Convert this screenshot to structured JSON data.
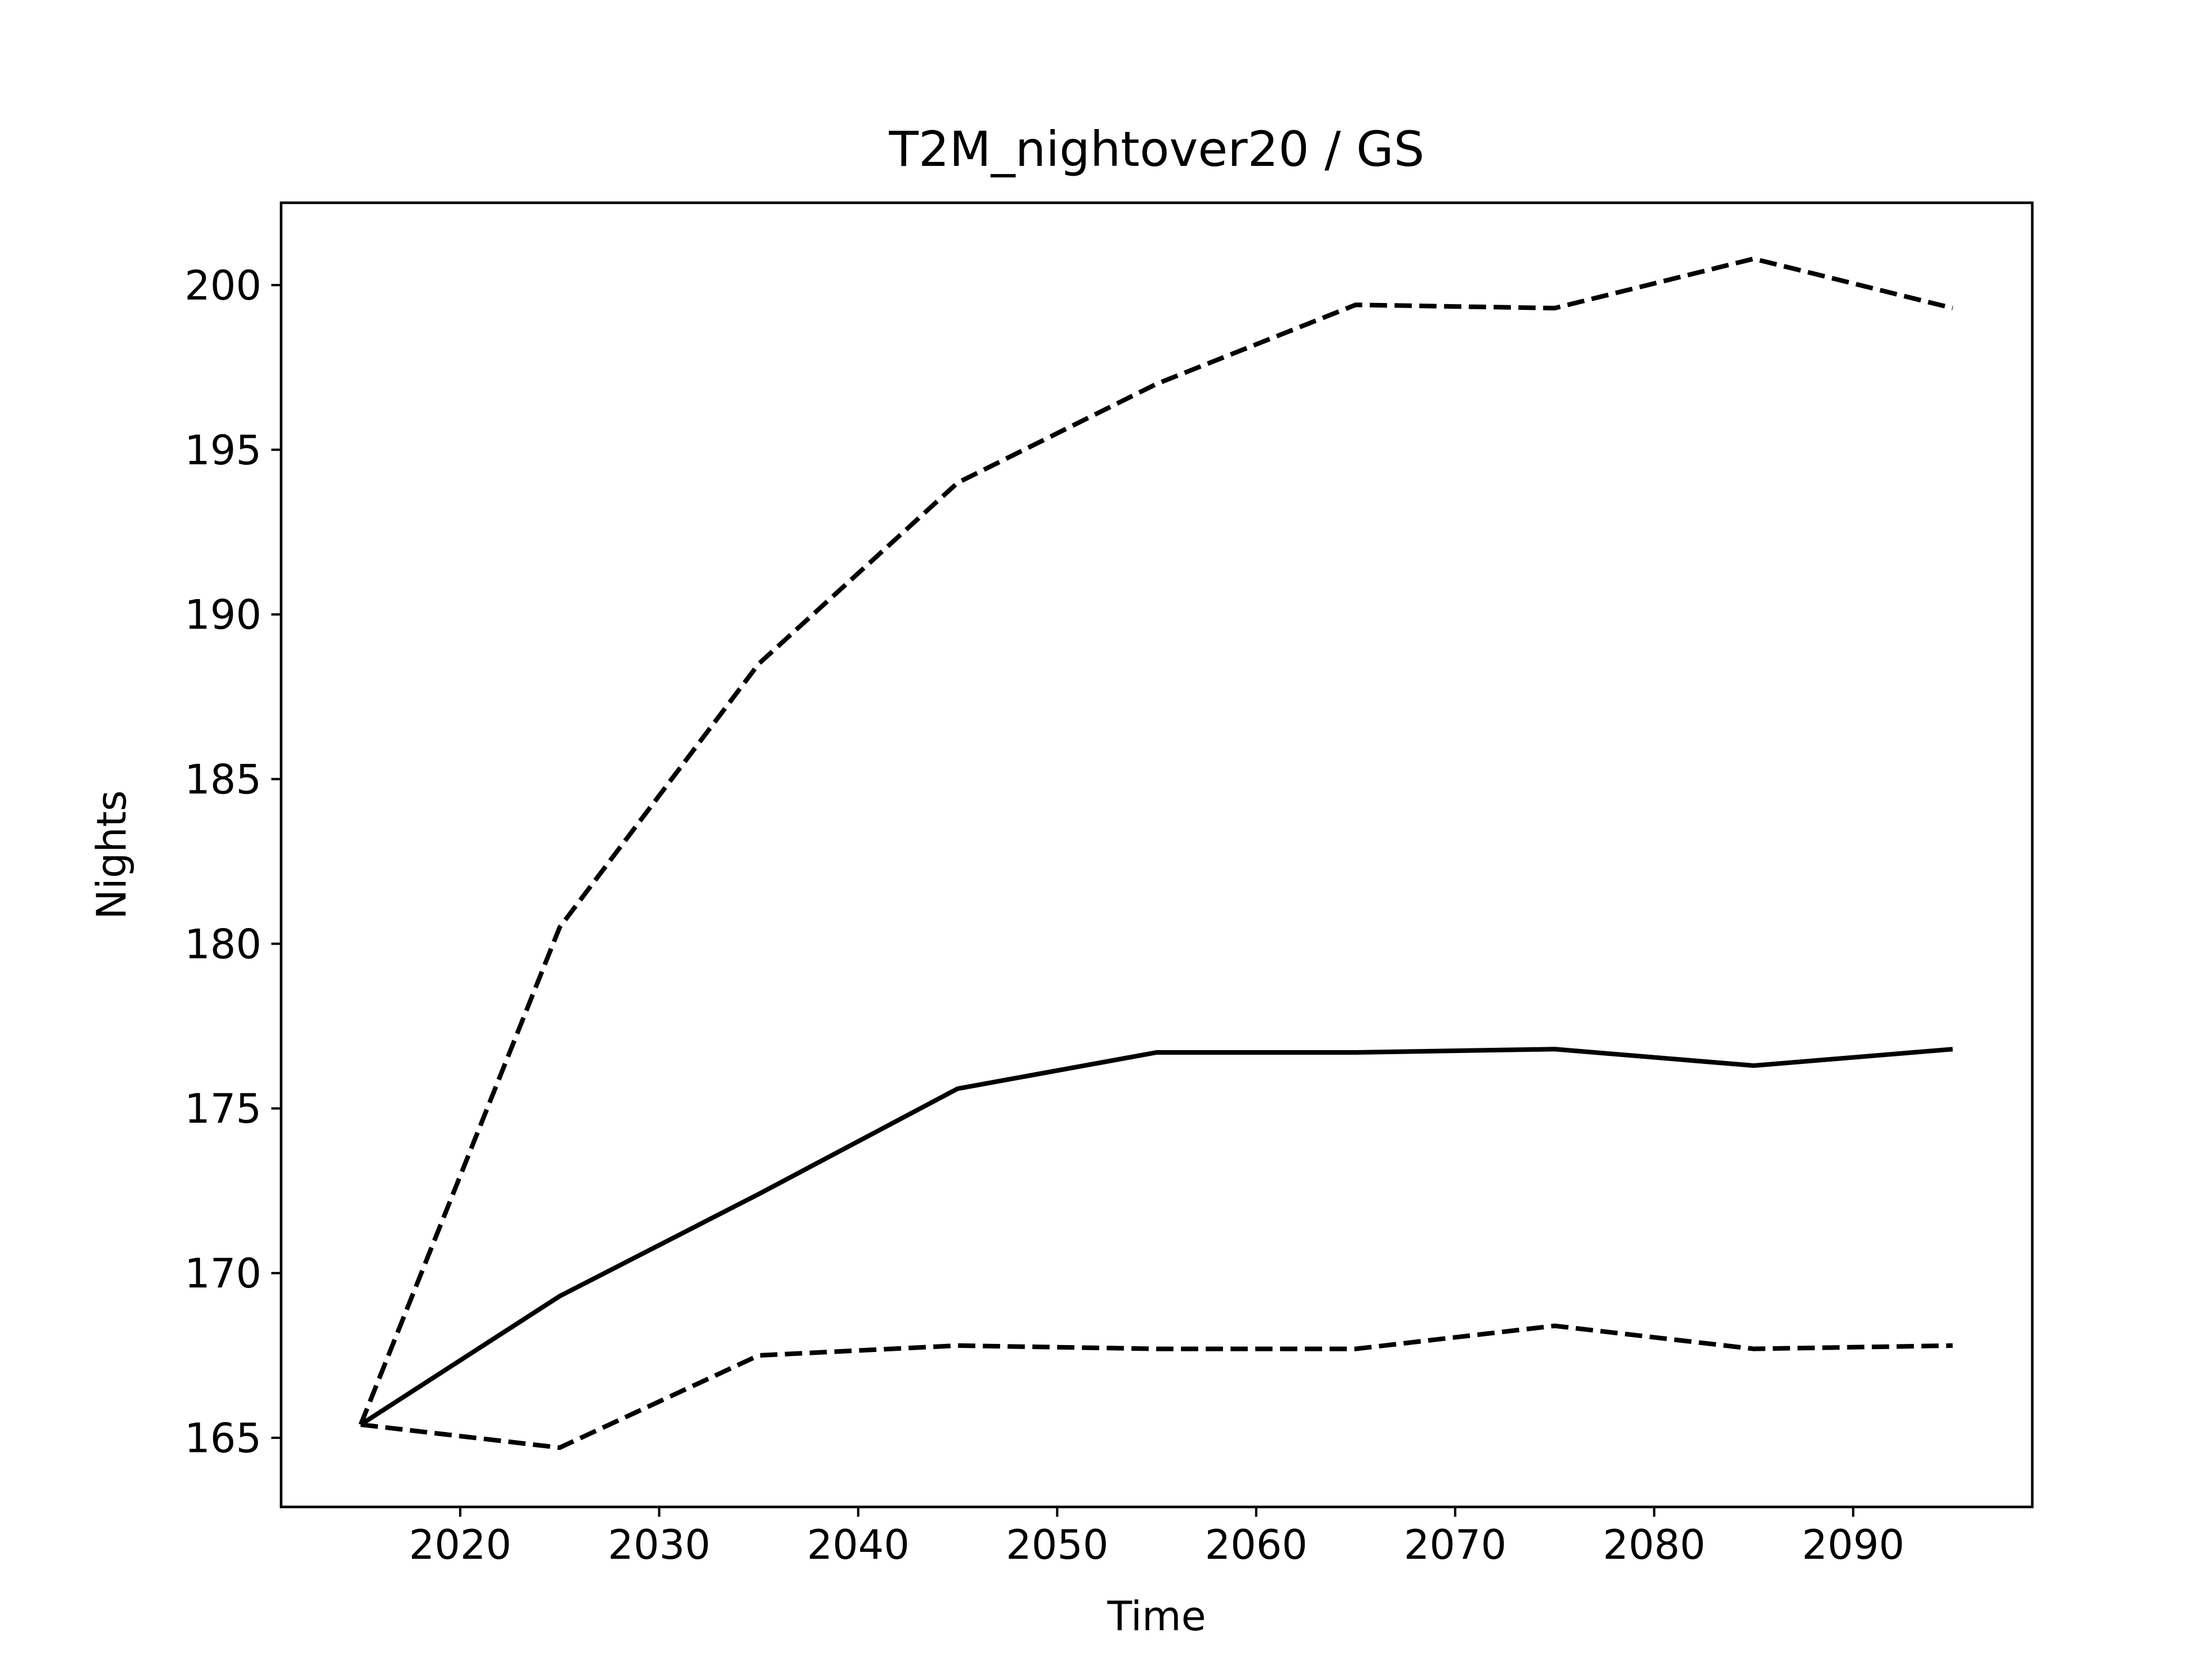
{
  "chart_data": {
    "type": "line",
    "title": "T2M_nightover20 / GS",
    "xlabel": "Time",
    "ylabel": "Nights",
    "xlim": [
      2011,
      2099
    ],
    "ylim": [
      162.9,
      202.5
    ],
    "xticks": [
      2020,
      2030,
      2040,
      2050,
      2060,
      2070,
      2080,
      2090
    ],
    "yticks": [
      165,
      170,
      175,
      180,
      185,
      190,
      195,
      200
    ],
    "grid": false,
    "legend": "none",
    "x": [
      2015,
      2025,
      2035,
      2045,
      2055,
      2065,
      2075,
      2085,
      2095
    ],
    "series": [
      {
        "line_style": "solid",
        "color": "#000000",
        "values": [
          165.4,
          169.3,
          172.4,
          175.6,
          176.7,
          176.7,
          176.8,
          176.3,
          176.8
        ]
      },
      {
        "line_style": "dashed",
        "color": "#000000",
        "values": [
          165.4,
          180.5,
          188.5,
          194.0,
          197.0,
          199.4,
          199.3,
          200.8,
          199.3
        ]
      },
      {
        "line_style": "dashed",
        "color": "#000000",
        "values": [
          165.4,
          164.7,
          167.5,
          167.8,
          167.7,
          167.7,
          168.4,
          167.7,
          167.8
        ]
      }
    ]
  }
}
